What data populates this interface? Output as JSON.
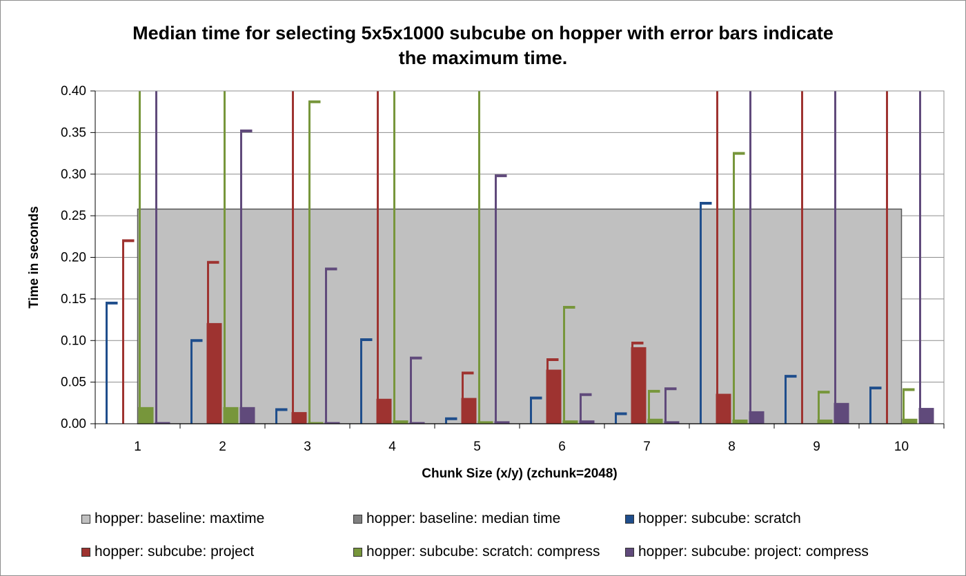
{
  "chart_data": {
    "type": "bar",
    "title_lines": [
      "Median time for selecting 5x5x1000 subcube on hopper with error bars indicate",
      "the maximum time."
    ],
    "xlabel": "Chunk Size (x/y) (zchunk=2048)",
    "ylabel": "Time in seconds",
    "ylim": [
      0,
      0.4
    ],
    "ytick_values": [
      0,
      0.05,
      0.1,
      0.15,
      0.2,
      0.25,
      0.3,
      0.35,
      0.4
    ],
    "ytick_labels": [
      "0.00",
      "0.05",
      "0.10",
      "0.15",
      "0.20",
      "0.25",
      "0.30",
      "0.35",
      "0.40"
    ],
    "categories": [
      "1",
      "2",
      "3",
      "4",
      "5",
      "6",
      "7",
      "8",
      "9",
      "10"
    ],
    "background_series": [
      {
        "name": "hopper: baseline: maxtime",
        "value": 0.258,
        "color": "#c0c0c0",
        "style": "area"
      },
      {
        "name": "hopper: baseline: median time",
        "value": 0.0,
        "color": "#808080",
        "style": "area"
      }
    ],
    "series": [
      {
        "name": "hopper: subcube: scratch",
        "color": "#1f4e8c",
        "values": [
          0.0,
          0.0,
          0.0,
          0.0,
          0.0,
          0.0,
          0.0,
          0.0,
          0.0,
          0.0
        ],
        "max": [
          0.145,
          0.1,
          0.017,
          0.101,
          0.006,
          0.031,
          0.012,
          0.265,
          0.057,
          0.043
        ]
      },
      {
        "name": "hopper: subcube: project",
        "color": "#9e3330",
        "values": [
          0.0,
          0.121,
          0.014,
          0.03,
          0.031,
          0.065,
          0.092,
          0.036,
          0.0,
          0.0
        ],
        "max": [
          0.22,
          0.194,
          0.4,
          0.4,
          0.061,
          0.077,
          0.097,
          0.4,
          0.4,
          0.4
        ]
      },
      {
        "name": "hopper: subcube: scratch: compress",
        "color": "#77963b",
        "values": [
          0.02,
          0.02,
          0.002,
          0.004,
          0.003,
          0.004,
          0.006,
          0.005,
          0.005,
          0.006
        ],
        "max": [
          0.4,
          0.4,
          0.387,
          0.4,
          0.4,
          0.14,
          0.039,
          0.325,
          0.038,
          0.041
        ]
      },
      {
        "name": "hopper: subcube: project: compress",
        "color": "#604a7b",
        "values": [
          0.002,
          0.02,
          0.002,
          0.002,
          0.003,
          0.004,
          0.003,
          0.015,
          0.025,
          0.019
        ],
        "max": [
          0.4,
          0.352,
          0.186,
          0.079,
          0.298,
          0.035,
          0.042,
          0.4,
          0.4,
          0.4
        ]
      }
    ],
    "legend_position": "bottom"
  },
  "legend": [
    {
      "label": "hopper: baseline: maxtime",
      "color": "#c0c0c0"
    },
    {
      "label": "hopper: baseline: median time",
      "color": "#808080"
    },
    {
      "label": "hopper: subcube: scratch",
      "color": "#1f4e8c"
    },
    {
      "label": "hopper: subcube: project",
      "color": "#9e3330"
    },
    {
      "label": "hopper: subcube: scratch: compress",
      "color": "#77963b"
    },
    {
      "label": "hopper: subcube: project: compress",
      "color": "#604a7b"
    }
  ]
}
